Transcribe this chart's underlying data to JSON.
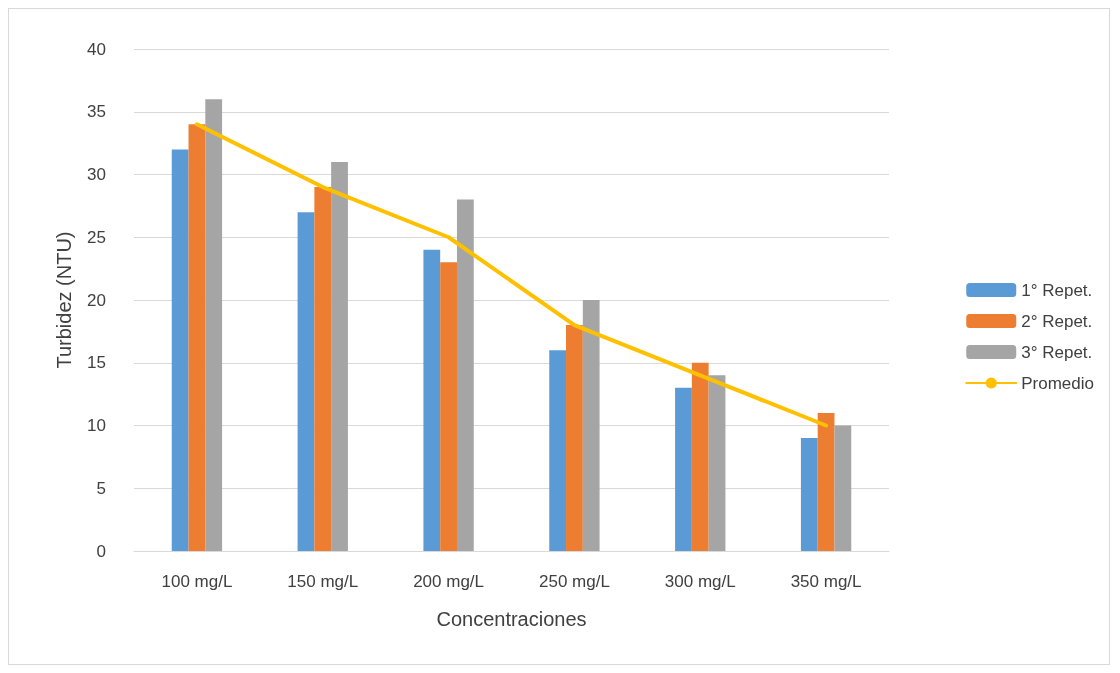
{
  "chart_data": {
    "type": "bar",
    "xlabel": "Concentraciones",
    "ylabel": "Turbidez (NTU)",
    "categories": [
      "100 mg/L",
      "150 mg/L",
      "200 mg/L",
      "250 mg/L",
      "300 mg/L",
      "350 mg/L"
    ],
    "series": [
      {
        "name": "1° Repet.",
        "color": "#5b9bd5",
        "values": [
          32,
          27,
          24,
          16,
          13,
          9
        ]
      },
      {
        "name": "2° Repet.",
        "color": "#ed7d31",
        "values": [
          34,
          29,
          23,
          18,
          15,
          11
        ]
      },
      {
        "name": "3° Repet.",
        "color": "#a5a5a5",
        "values": [
          36,
          31,
          28,
          20,
          14,
          10
        ]
      },
      {
        "name": "Promedio",
        "type": "line",
        "color": "#ffc000",
        "values": [
          34,
          29,
          25,
          18,
          14,
          10
        ]
      }
    ],
    "ylim": [
      0,
      40
    ],
    "yticks": [
      0,
      5,
      10,
      15,
      20,
      25,
      30,
      35,
      40
    ],
    "grid": "y",
    "legend": "right",
    "marker": "none",
    "line_style": "solid"
  }
}
